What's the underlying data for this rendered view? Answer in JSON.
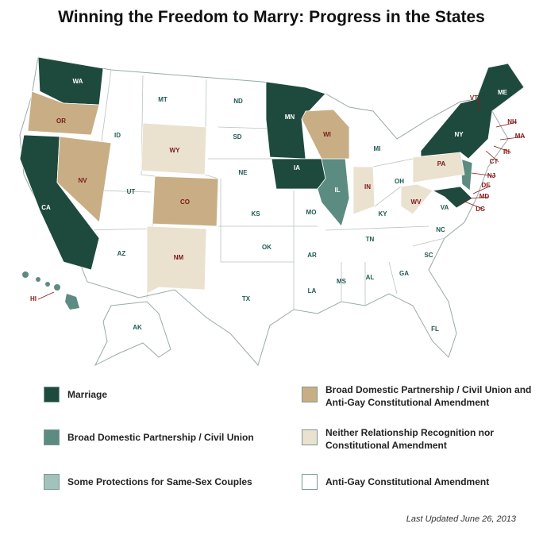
{
  "title": "Winning the Freedom to Marry: Progress in the States",
  "legend": [
    {
      "label": "Marriage",
      "color": "#1e4a3e",
      "states": [
        "WA",
        "CA",
        "MN",
        "IA",
        "NY",
        "ME",
        "VT",
        "NH",
        "MA",
        "RI",
        "CT",
        "DE",
        "MD",
        "DC"
      ]
    },
    {
      "label": "Broad Domestic Partnership / Civil Union",
      "color": "#5b8b81",
      "states": [
        "IL",
        "NJ",
        "HI"
      ]
    },
    {
      "label": "Some Protections for Same-Sex Couples",
      "color": "#a3c2bb",
      "states": []
    },
    {
      "label": "Broad Domestic Partnership / Civil Union and Anti-Gay Constitutional Amendment",
      "color": "#c9ae85",
      "states": [
        "OR",
        "NV",
        "CO",
        "WI"
      ]
    },
    {
      "label": "Neither Relationship Recognition nor Constitutional Amendment",
      "color": "#ebe1cf",
      "states": [
        "WY",
        "NM",
        "PA",
        "IN",
        "WV"
      ]
    },
    {
      "label": "Anti-Gay Constitutional Amendment",
      "color": "#ffffff",
      "states": [
        "MT",
        "ID",
        "ND",
        "SD",
        "NE",
        "UT",
        "KS",
        "MO",
        "OK",
        "AZ",
        "TX",
        "AR",
        "LA",
        "MS",
        "AL",
        "GA",
        "FL",
        "TN",
        "KY",
        "OH",
        "MI",
        "SC",
        "NC",
        "VA",
        "AK"
      ]
    }
  ],
  "note": "Last Updated June 26, 2013"
}
